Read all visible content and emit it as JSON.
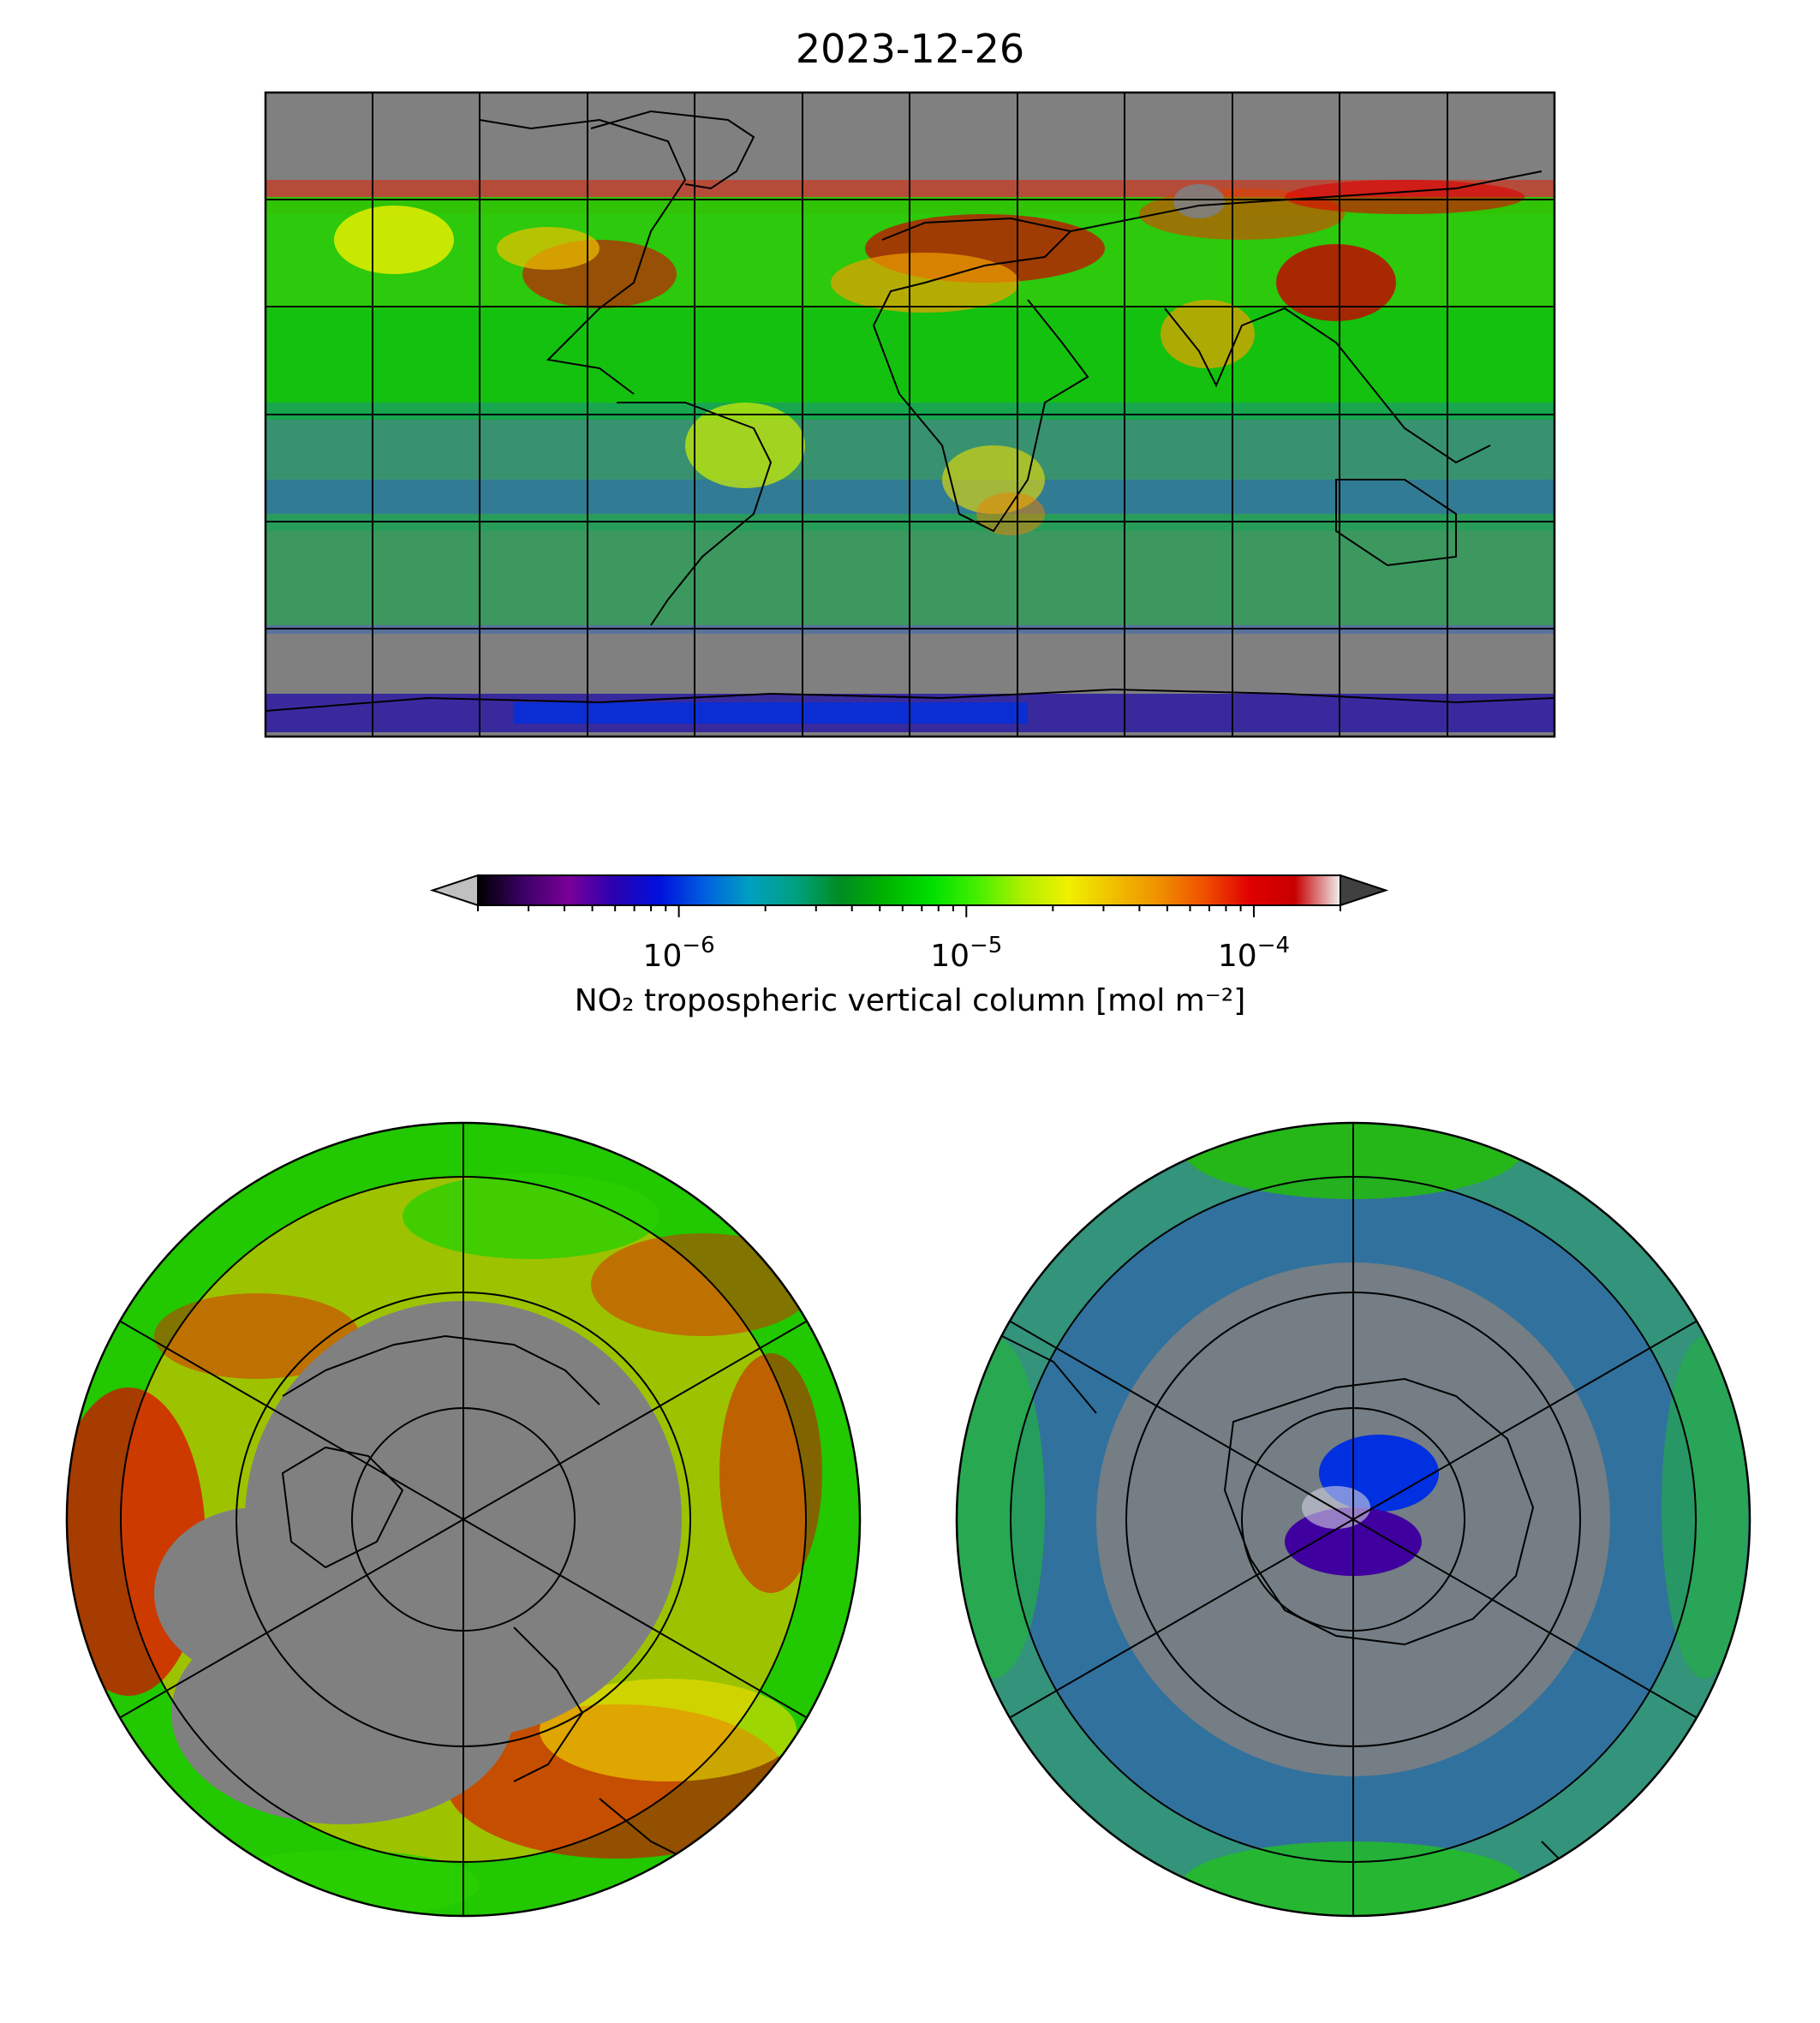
{
  "title": "2023-12-26",
  "colorbar": {
    "label": "NO₂ tropospheric vertical column [mol m⁻²]",
    "scale": "log",
    "ticks": [
      {
        "value": 1e-06,
        "mantissa": "10",
        "exponent": "−6"
      },
      {
        "value": 1e-05,
        "mantissa": "10",
        "exponent": "−5"
      },
      {
        "value": 0.0001,
        "mantissa": "10",
        "exponent": "−4"
      }
    ],
    "range": [
      2e-07,
      0.0002
    ],
    "extend": "both",
    "colors": [
      "#000000",
      "#3c0066",
      "#7a0099",
      "#2a00b0",
      "#0010dd",
      "#0060e0",
      "#00a0c0",
      "#00a080",
      "#008c20",
      "#00b400",
      "#00e000",
      "#44f000",
      "#b0f000",
      "#f0f000",
      "#f0c000",
      "#f09000",
      "#f05000",
      "#e00000",
      "#c80000",
      "#f0f0f0"
    ],
    "under_color": "#c0c0c0",
    "over_color": "#404040"
  },
  "maps": [
    {
      "name": "global-equirectangular",
      "projection": "plate-carree"
    },
    {
      "name": "north-polar",
      "projection": "north-polar-stereographic"
    },
    {
      "name": "south-polar",
      "projection": "south-polar-stereographic"
    }
  ],
  "background_color": "#808080"
}
